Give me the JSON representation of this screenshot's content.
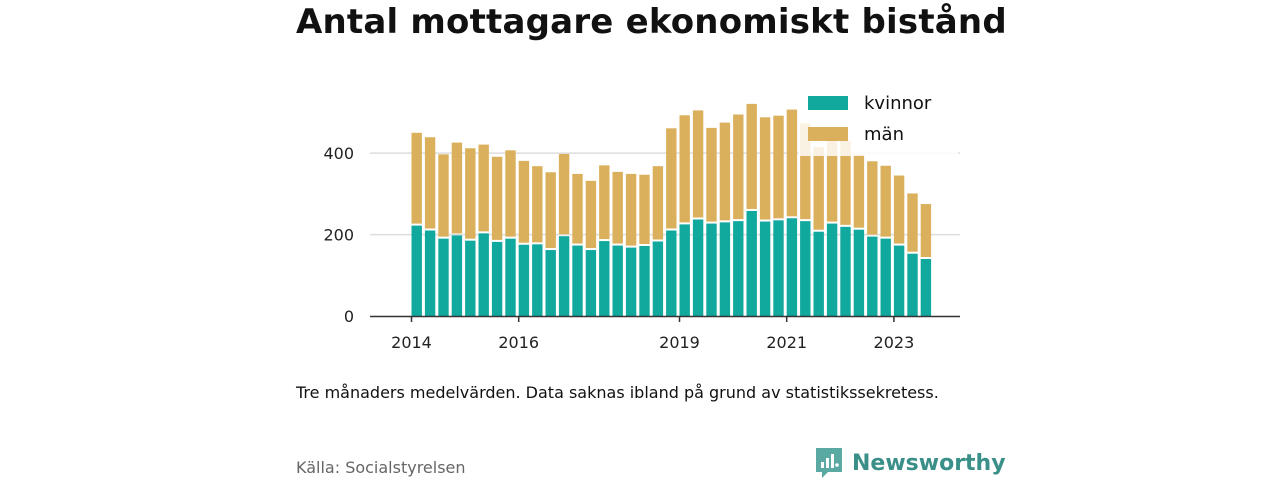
{
  "chart_data": {
    "type": "bar",
    "stacked": true,
    "title": "Antal mottagare ekonomiskt bistånd",
    "xlabel": "",
    "ylabel": "",
    "ylim": [
      0,
      560
    ],
    "yticks": [
      0,
      200,
      400
    ],
    "ytick_labels": [
      "0",
      "200",
      "400"
    ],
    "xticks": [
      {
        "label": "2014",
        "index": -0.5
      },
      {
        "label": "2016",
        "index": 7.5
      },
      {
        "label": "2019",
        "index": 19.5
      },
      {
        "label": "2021",
        "index": 27.5
      },
      {
        "label": "2023",
        "index": 35.5
      }
    ],
    "grid": "horizontal",
    "legend_position": "top-right",
    "series": [
      {
        "name": "kvinnor",
        "color": "#11a89e",
        "values": [
          222,
          210,
          190,
          198,
          185,
          203,
          182,
          190,
          175,
          176,
          162,
          196,
          173,
          162,
          184,
          173,
          168,
          172,
          183,
          210,
          225,
          237,
          227,
          230,
          233,
          258,
          232,
          235,
          240,
          233,
          207,
          227,
          219,
          212,
          195,
          190,
          173,
          153,
          140
        ]
      },
      {
        "name": "män",
        "color": "#dbb05c",
        "values": [
          228,
          229,
          207,
          228,
          227,
          218,
          209,
          217,
          206,
          192,
          191,
          202,
          176,
          170,
          186,
          181,
          181,
          175,
          185,
          251,
          268,
          268,
          235,
          245,
          262,
          263,
          256,
          257,
          267,
          240,
          208,
          206,
          211,
          184,
          185,
          179,
          172,
          148,
          135
        ]
      }
    ]
  },
  "footer": {
    "note": "Tre månaders medelvärden. Data saknas ibland på grund av statistikssekretess.",
    "source": "Källa: Socialstyrelsen",
    "brand": "Newsworthy",
    "brand_icon": "newsworthy-chart-icon"
  }
}
